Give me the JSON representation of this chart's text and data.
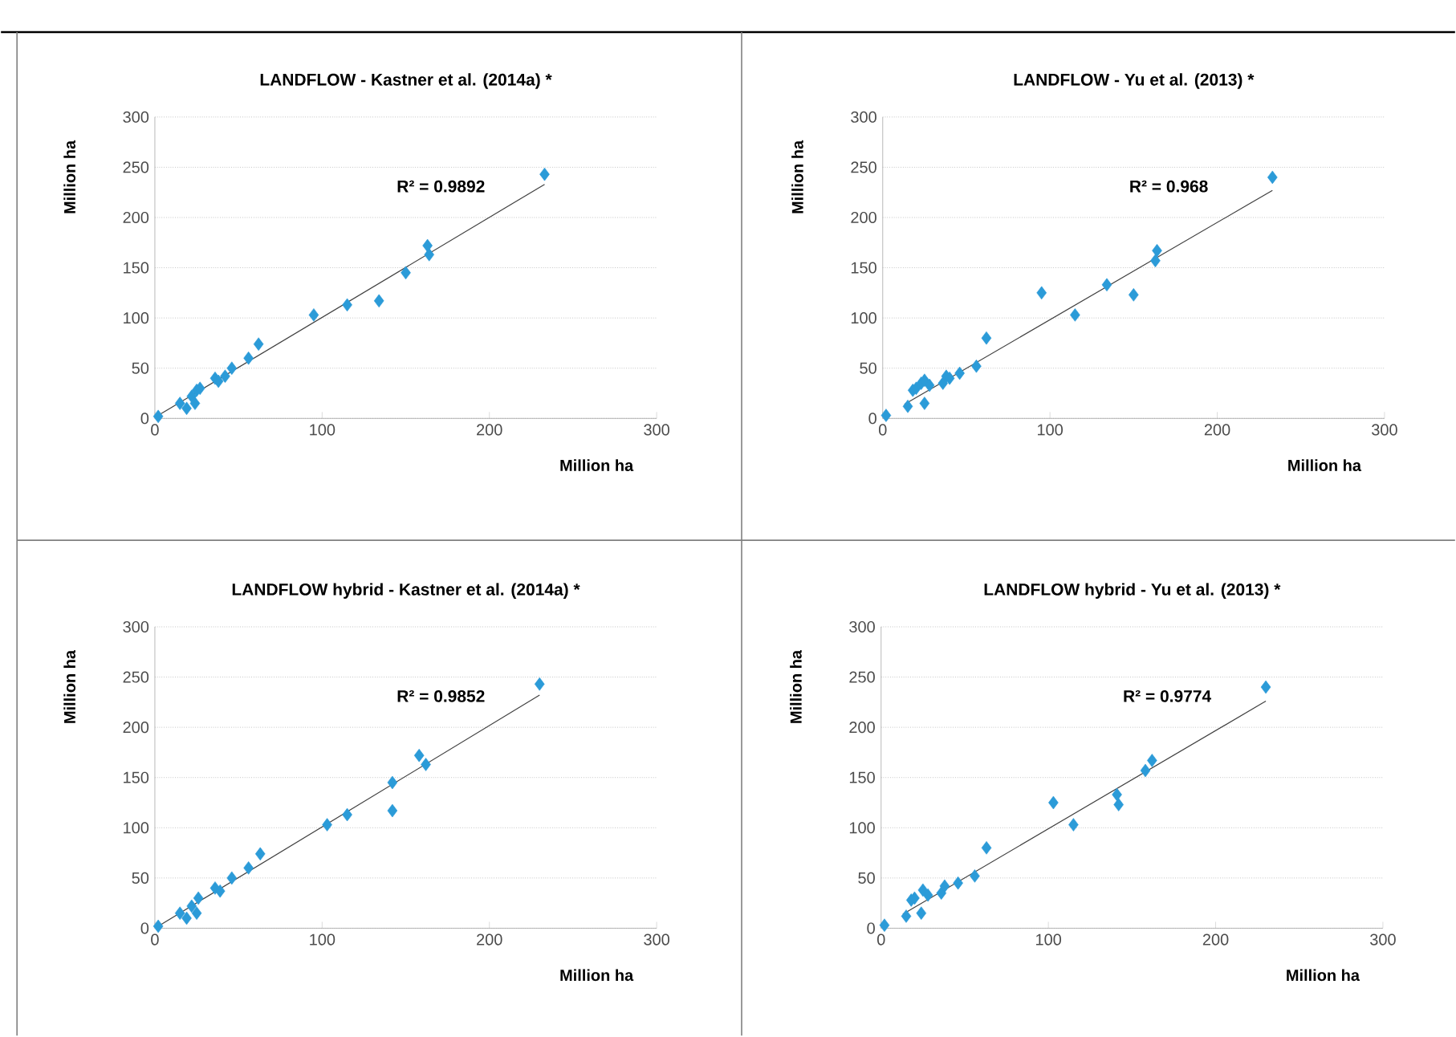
{
  "chart_data": [
    {
      "type": "scatter",
      "title": "LANDFLOW - Kastner et al. (2014a) *",
      "xlabel": "Million ha",
      "ylabel": "Million ha",
      "xlim": [
        0,
        300
      ],
      "ylim": [
        0,
        300
      ],
      "xticks": [
        0,
        100,
        200,
        300
      ],
      "yticks": [
        0,
        50,
        100,
        150,
        200,
        250,
        300
      ],
      "grid": "y",
      "marker": "diamond",
      "annotations": [
        "R² = 0.9892"
      ],
      "series": [
        {
          "color": "#2b9bd8",
          "x": [
            2,
            15,
            19,
            22,
            24,
            25,
            27,
            36,
            38,
            42,
            46,
            56,
            62,
            95,
            115,
            134,
            150,
            163,
            164,
            233
          ],
          "values": [
            2,
            15,
            10,
            22,
            15,
            28,
            30,
            40,
            37,
            42,
            50,
            60,
            74,
            103,
            113,
            117,
            145,
            172,
            163,
            243
          ]
        },
        {
          "type": "line",
          "color": "#404040",
          "marker": "none",
          "x": [
            2,
            233
          ],
          "values": [
            3,
            233
          ]
        }
      ]
    },
    {
      "type": "scatter",
      "title": "LANDFLOW - Yu et al. (2013) *",
      "xlabel": "Million ha",
      "ylabel": "Million ha",
      "xlim": [
        0,
        300
      ],
      "ylim": [
        0,
        300
      ],
      "xticks": [
        0,
        100,
        200,
        300
      ],
      "yticks": [
        0,
        50,
        100,
        150,
        200,
        250,
        300
      ],
      "grid": "y",
      "marker": "diamond",
      "annotations": [
        "R² = 0.968"
      ],
      "series": [
        {
          "color": "#2b9bd8",
          "x": [
            2,
            15,
            18,
            20,
            23,
            25,
            25,
            28,
            36,
            38,
            40,
            46,
            56,
            62,
            95,
            115,
            134,
            150,
            163,
            164,
            233
          ],
          "values": [
            3,
            12,
            28,
            30,
            35,
            15,
            38,
            33,
            35,
            42,
            40,
            45,
            52,
            80,
            125,
            103,
            133,
            123,
            157,
            167,
            240
          ]
        },
        {
          "type": "line",
          "color": "#404040",
          "marker": "none",
          "x": [
            13,
            233
          ],
          "values": [
            14,
            227
          ]
        }
      ]
    },
    {
      "type": "scatter",
      "title": "LANDFLOW hybrid - Kastner et al. (2014a) *",
      "xlabel": "Million ha",
      "ylabel": "Million ha",
      "xlim": [
        0,
        300
      ],
      "ylim": [
        0,
        300
      ],
      "xticks": [
        0,
        100,
        200,
        300
      ],
      "yticks": [
        0,
        50,
        100,
        150,
        200,
        250,
        300
      ],
      "grid": "y",
      "marker": "diamond",
      "annotations": [
        "R² = 0.9852"
      ],
      "series": [
        {
          "color": "#2b9bd8",
          "x": [
            2,
            15,
            19,
            22,
            25,
            26,
            36,
            39,
            46,
            56,
            63,
            103,
            115,
            142,
            142,
            158,
            162,
            230
          ],
          "values": [
            2,
            15,
            10,
            22,
            15,
            30,
            40,
            37,
            50,
            60,
            74,
            103,
            113,
            145,
            117,
            172,
            163,
            243
          ]
        },
        {
          "type": "line",
          "color": "#404040",
          "marker": "none",
          "x": [
            2,
            230
          ],
          "values": [
            2,
            232
          ]
        }
      ]
    },
    {
      "type": "scatter",
      "title": "LANDFLOW hybrid - Yu et al. (2013) *",
      "xlabel": "Million ha",
      "ylabel": "Million ha",
      "xlim": [
        0,
        300
      ],
      "ylim": [
        0,
        300
      ],
      "xticks": [
        0,
        100,
        200,
        300
      ],
      "yticks": [
        0,
        50,
        100,
        150,
        200,
        250,
        300
      ],
      "grid": "y",
      "marker": "diamond",
      "annotations": [
        "R² = 0.9774"
      ],
      "series": [
        {
          "color": "#2b9bd8",
          "x": [
            2,
            15,
            18,
            20,
            24,
            25,
            28,
            36,
            38,
            46,
            56,
            63,
            103,
            115,
            141,
            142,
            158,
            162,
            230
          ],
          "values": [
            3,
            12,
            28,
            30,
            15,
            38,
            33,
            35,
            42,
            45,
            52,
            80,
            125,
            103,
            133,
            123,
            157,
            167,
            240
          ]
        },
        {
          "type": "line",
          "color": "#404040",
          "marker": "none",
          "x": [
            13,
            230
          ],
          "values": [
            14,
            226
          ]
        }
      ]
    }
  ]
}
